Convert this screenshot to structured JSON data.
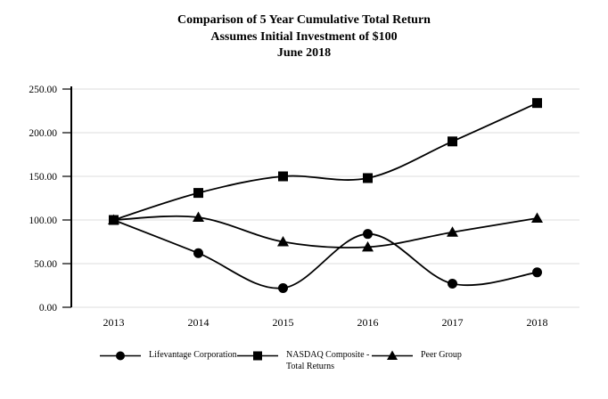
{
  "title": {
    "line1": "Comparison of 5 Year Cumulative Total Return",
    "line2": "Assumes Initial Investment of $100",
    "line3": "June 2018"
  },
  "chart_data": {
    "type": "line",
    "title": "Comparison of 5 Year Cumulative Total Return",
    "subtitle": "Assumes Initial Investment of $100 — June 2018",
    "x": [
      "2013",
      "2014",
      "2015",
      "2016",
      "2017",
      "2018"
    ],
    "series": [
      {
        "name": "Lifevantage Corporation",
        "marker": "circle",
        "values": [
          100,
          62,
          22,
          84,
          27,
          40
        ],
        "legend_lines": [
          "Lifevantage Corporation"
        ]
      },
      {
        "name": "NASDAQ Composite - Total Returns",
        "marker": "square",
        "values": [
          100,
          131,
          150,
          148,
          190,
          234
        ],
        "legend_lines": [
          "NASDAQ Composite -",
          "Total Returns"
        ]
      },
      {
        "name": "Peer Group",
        "marker": "triangle",
        "values": [
          100,
          103,
          75,
          69,
          86,
          102
        ],
        "legend_lines": [
          "Peer Group"
        ]
      }
    ],
    "ylim": [
      0,
      250
    ],
    "ytick_labels": [
      "0.00",
      "50.00",
      "100.00",
      "150.00",
      "200.00",
      "250.00"
    ],
    "xlabel": "",
    "ylabel": "",
    "grid": true,
    "smooth": true,
    "legend_position": "bottom",
    "colors": {
      "line": "#000000",
      "gridline": "#dcdcdc",
      "text": "#000000",
      "background": "#ffffff"
    }
  }
}
